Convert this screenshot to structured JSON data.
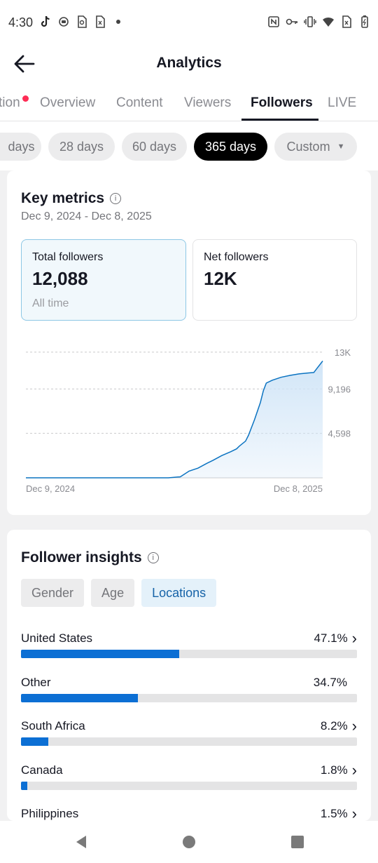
{
  "status_bar": {
    "time": "4:30"
  },
  "header": {
    "title": "Analytics"
  },
  "tabs": [
    {
      "label": "tion",
      "has_notification": true
    },
    {
      "label": "Overview"
    },
    {
      "label": "Content"
    },
    {
      "label": "Viewers"
    },
    {
      "label": "Followers",
      "active": true
    },
    {
      "label": "LIVE"
    }
  ],
  "ranges": [
    {
      "label": "days"
    },
    {
      "label": "28 days"
    },
    {
      "label": "60 days"
    },
    {
      "label": "365 days",
      "active": true
    },
    {
      "label": "Custom",
      "dropdown": true
    }
  ],
  "key_metrics": {
    "title": "Key metrics",
    "date_range": "Dec 9, 2024 - Dec 8, 2025",
    "total": {
      "label": "Total followers",
      "value": "12,088",
      "sub": "All time"
    },
    "net": {
      "label": "Net followers",
      "value": "12K"
    }
  },
  "chart_data": {
    "type": "area",
    "x_start": "Dec 9, 2024",
    "x_end": "Dec 8, 2025",
    "y_ticks": [
      "13K",
      "9,196",
      "4,598"
    ],
    "ylim": [
      0,
      13794
    ],
    "grid": true,
    "points": [
      [
        0.0,
        0
      ],
      [
        0.48,
        0
      ],
      [
        0.52,
        100
      ],
      [
        0.55,
        700
      ],
      [
        0.58,
        1000
      ],
      [
        0.61,
        1500
      ],
      [
        0.63,
        1800
      ],
      [
        0.66,
        2300
      ],
      [
        0.69,
        2700
      ],
      [
        0.71,
        3000
      ],
      [
        0.72,
        3300
      ],
      [
        0.74,
        3800
      ],
      [
        0.75,
        4400
      ],
      [
        0.77,
        6000
      ],
      [
        0.79,
        7800
      ],
      [
        0.8,
        9000
      ],
      [
        0.81,
        9800
      ],
      [
        0.83,
        10100
      ],
      [
        0.86,
        10400
      ],
      [
        0.89,
        10600
      ],
      [
        0.92,
        10750
      ],
      [
        0.95,
        10850
      ],
      [
        0.97,
        10900
      ],
      [
        0.98,
        11300
      ],
      [
        1.0,
        12088
      ]
    ],
    "line_color": "#0b73c1",
    "fill_color": "#cfe4f7"
  },
  "insights": {
    "title": "Follower insights",
    "segments": [
      {
        "label": "Gender"
      },
      {
        "label": "Age"
      },
      {
        "label": "Locations",
        "active": true
      }
    ],
    "locations": [
      {
        "name": "United States",
        "pct": "47.1%",
        "value": 47.1,
        "chevron": true
      },
      {
        "name": "Other",
        "pct": "34.7%",
        "value": 34.7,
        "chevron": false
      },
      {
        "name": "South Africa",
        "pct": "8.2%",
        "value": 8.2,
        "chevron": true
      },
      {
        "name": "Canada",
        "pct": "1.8%",
        "value": 1.8,
        "chevron": true
      },
      {
        "name": "Philippines",
        "pct": "1.5%",
        "value": 1.5,
        "chevron": true
      }
    ]
  },
  "icons": {
    "status_left": [
      "tiktok-icon",
      "record-icon",
      "sim-icon",
      "file-x-icon",
      "dot-icon"
    ],
    "status_right": [
      "nfc-icon",
      "key-icon",
      "vibrate-icon",
      "wifi-icon",
      "no-sim-icon",
      "battery-icon"
    ]
  },
  "colors": {
    "accent": "#0c6fd4",
    "notification": "#fe2c55"
  }
}
